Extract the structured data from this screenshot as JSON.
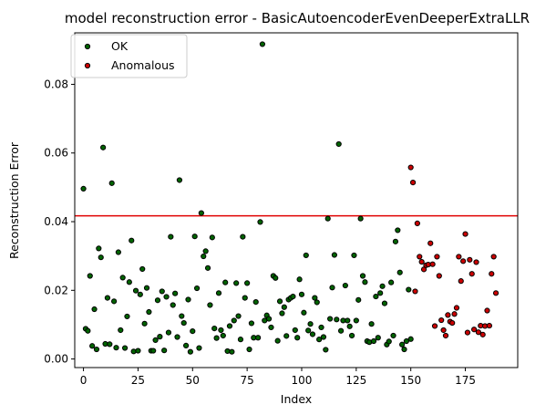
{
  "chart_data": {
    "type": "scatter",
    "title": "model reconstruction error - BasicAutoencoderEvenDeeperExtraLLR",
    "xlabel": "Index",
    "ylabel": "Reconstruction Error",
    "xlim": [
      -4,
      199
    ],
    "ylim": [
      -0.0025,
      0.095
    ],
    "x_ticks": [
      0,
      25,
      50,
      75,
      100,
      125,
      150,
      175
    ],
    "x_tick_labels": [
      "0",
      "25",
      "50",
      "75",
      "100",
      "125",
      "150",
      "175"
    ],
    "y_ticks": [
      0,
      0.02,
      0.04,
      0.06,
      0.08
    ],
    "y_tick_labels": [
      "0.00",
      "0.02",
      "0.04",
      "0.06",
      "0.08"
    ],
    "threshold": {
      "value": 0.0417,
      "color": "#e00000"
    },
    "legend": {
      "placement": "top-left"
    },
    "series": [
      {
        "name": "OK",
        "color": "#006400",
        "x": [
          0,
          1,
          2,
          3,
          4,
          5,
          6,
          7,
          8,
          9,
          10,
          11,
          12,
          13,
          14,
          15,
          16,
          17,
          18,
          19,
          20,
          21,
          22,
          23,
          24,
          25,
          26,
          27,
          28,
          29,
          30,
          31,
          32,
          33,
          34,
          35,
          36,
          37,
          38,
          39,
          40,
          41,
          42,
          43,
          44,
          45,
          46,
          47,
          48,
          49,
          50,
          51,
          52,
          53,
          54,
          55,
          56,
          57,
          58,
          59,
          60,
          61,
          62,
          63,
          64,
          65,
          66,
          67,
          68,
          69,
          70,
          71,
          72,
          73,
          74,
          75,
          76,
          77,
          78,
          79,
          80,
          81,
          82,
          83,
          84,
          85,
          86,
          87,
          88,
          89,
          90,
          91,
          92,
          93,
          94,
          95,
          96,
          97,
          98,
          99,
          100,
          101,
          102,
          103,
          104,
          105,
          106,
          107,
          108,
          109,
          110,
          111,
          112,
          113,
          114,
          115,
          116,
          117,
          118,
          119,
          120,
          121,
          122,
          123,
          124,
          125,
          126,
          127,
          128,
          129,
          130,
          131,
          132,
          133,
          134,
          135,
          136,
          137,
          138,
          139,
          140,
          141,
          142,
          143,
          144,
          145,
          146,
          147,
          148,
          149,
          150
        ],
        "y": [
          0.0496,
          0.0088,
          0.0082,
          0.0242,
          0.0038,
          0.0145,
          0.0028,
          0.0322,
          0.0296,
          0.0616,
          0.0044,
          0.0178,
          0.0043,
          0.0512,
          0.0168,
          0.0033,
          0.0311,
          0.0084,
          0.0237,
          0.0032,
          0.0124,
          0.0224,
          0.0345,
          0.0022,
          0.0199,
          0.0024,
          0.0188,
          0.0262,
          0.0103,
          0.0207,
          0.0137,
          0.0024,
          0.0024,
          0.0055,
          0.0171,
          0.0065,
          0.0197,
          0.0025,
          0.0181,
          0.0077,
          0.0356,
          0.0157,
          0.0191,
          0.0064,
          0.0521,
          0.0125,
          0.0105,
          0.0039,
          0.0173,
          0.0021,
          0.0081,
          0.0357,
          0.0206,
          0.0032,
          0.0425,
          0.0299,
          0.0314,
          0.0265,
          0.0157,
          0.0354,
          0.0089,
          0.0061,
          0.0192,
          0.0084,
          0.0068,
          0.0223,
          0.0023,
          0.0096,
          0.0021,
          0.0112,
          0.0221,
          0.0125,
          0.0057,
          0.0356,
          0.0178,
          0.0221,
          0.0028,
          0.0104,
          0.0062,
          0.0166,
          0.0062,
          0.0399,
          0.0917,
          0.0112,
          0.0127,
          0.0117,
          0.0092,
          0.0242,
          0.0236,
          0.0053,
          0.0168,
          0.0133,
          0.0151,
          0.0067,
          0.0173,
          0.0178,
          0.0182,
          0.0084,
          0.0062,
          0.0232,
          0.0188,
          0.0135,
          0.0302,
          0.0083,
          0.0102,
          0.0072,
          0.0178,
          0.0165,
          0.0057,
          0.0092,
          0.0064,
          0.0027,
          0.0409,
          0.0117,
          0.0208,
          0.0303,
          0.0115,
          0.0626,
          0.0082,
          0.0112,
          0.0214,
          0.0112,
          0.0095,
          0.0068,
          0.0302,
          0.0112,
          0.0172,
          0.0409,
          0.0242,
          0.0224,
          0.0052,
          0.0049,
          0.0102,
          0.0052,
          0.0182,
          0.0062,
          0.0192,
          0.0212,
          0.0162,
          0.0042,
          0.0051,
          0.0223,
          0.0068,
          0.0342,
          0.0375,
          0.0252,
          0.0042,
          0.0028,
          0.0052,
          0.0202,
          0.0058
        ]
      },
      {
        "name": "Anomalous",
        "color": "#cc0000",
        "x": [
          150,
          151,
          152,
          153,
          154,
          155,
          156,
          157,
          158,
          159,
          160,
          161,
          162,
          163,
          164,
          165,
          166,
          167,
          168,
          169,
          170,
          171,
          172,
          173,
          174,
          175,
          176,
          177,
          178,
          179,
          180,
          181,
          182,
          183,
          184,
          185,
          186,
          187,
          188,
          189
        ],
        "y": [
          0.0558,
          0.0514,
          0.0197,
          0.0395,
          0.0298,
          0.0283,
          0.0261,
          0.0273,
          0.0275,
          0.0337,
          0.0276,
          0.0096,
          0.0298,
          0.0242,
          0.0113,
          0.0084,
          0.0068,
          0.0128,
          0.0109,
          0.0105,
          0.0131,
          0.0149,
          0.0298,
          0.0227,
          0.0285,
          0.0364,
          0.0077,
          0.0289,
          0.0248,
          0.0086,
          0.0282,
          0.0078,
          0.0097,
          0.0071,
          0.0096,
          0.0141,
          0.0097,
          0.0248,
          0.0298,
          0.0192
        ]
      }
    ]
  }
}
